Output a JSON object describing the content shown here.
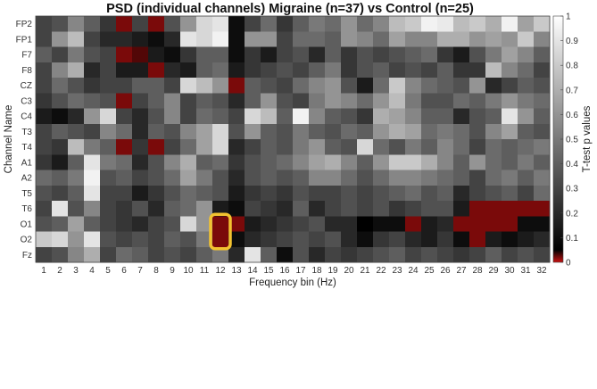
{
  "chart_data": {
    "type": "heatmap",
    "title": "PSD (individual channels) Migraine (n=37) vs Control (n=25)",
    "xlabel": "Frequency bin (Hz)",
    "ylabel": "Channel Name",
    "colorbar_label": "T-test p values",
    "x_ticks": [
      "1",
      "2",
      "3",
      "4",
      "5",
      "6",
      "7",
      "8",
      "9",
      "10",
      "11",
      "12",
      "13",
      "14",
      "15",
      "16",
      "17",
      "18",
      "19",
      "20",
      "21",
      "22",
      "23",
      "24",
      "25",
      "26",
      "27",
      "28",
      "29",
      "30",
      "31",
      "32"
    ],
    "y_ticks": [
      "FP2",
      "FP1",
      "F7",
      "F8",
      "CZ",
      "C3",
      "C4",
      "T3",
      "T4",
      "A1",
      "A2",
      "T5",
      "T6",
      "O1",
      "O2",
      "Fz"
    ],
    "colorbar_range": [
      0,
      1
    ],
    "colorbar_ticks": [
      "0",
      "0.1",
      "0.2",
      "0.3",
      "0.4",
      "0.5",
      "0.6",
      "0.7",
      "0.8",
      "0.9",
      "1"
    ],
    "colormap": {
      "low_red": "#cc1111",
      "low_dark": "#000000",
      "high_white": "#ffffff",
      "red_to_black_at": 0.05
    },
    "highlight": {
      "channels": [
        "O1",
        "O2"
      ],
      "frequency_bin": "12",
      "color": "#f2c230"
    },
    "values": [
      [
        0.3,
        0.35,
        0.55,
        0.4,
        0.25,
        0.02,
        0.3,
        0.02,
        0.35,
        0.6,
        0.85,
        0.9,
        0.1,
        0.3,
        0.45,
        0.25,
        0.4,
        0.5,
        0.45,
        0.6,
        0.45,
        0.55,
        0.75,
        0.8,
        0.95,
        0.92,
        0.75,
        0.8,
        0.7,
        0.95,
        0.65,
        0.8
      ],
      [
        0.3,
        0.6,
        0.75,
        0.3,
        0.2,
        0.2,
        0.15,
        0.1,
        0.2,
        0.9,
        0.85,
        0.95,
        0.1,
        0.6,
        0.6,
        0.3,
        0.45,
        0.45,
        0.4,
        0.6,
        0.55,
        0.45,
        0.65,
        0.55,
        0.55,
        0.7,
        0.7,
        0.6,
        0.65,
        0.6,
        0.8,
        0.55
      ],
      [
        0.4,
        0.3,
        0.5,
        0.35,
        0.3,
        0.02,
        0.03,
        0.15,
        0.1,
        0.25,
        0.4,
        0.4,
        0.1,
        0.25,
        0.15,
        0.3,
        0.35,
        0.2,
        0.4,
        0.25,
        0.35,
        0.3,
        0.35,
        0.4,
        0.45,
        0.25,
        0.15,
        0.35,
        0.5,
        0.65,
        0.55,
        0.4
      ],
      [
        0.3,
        0.55,
        0.7,
        0.2,
        0.3,
        0.15,
        0.15,
        0.02,
        0.2,
        0.15,
        0.4,
        0.45,
        0.15,
        0.25,
        0.3,
        0.35,
        0.3,
        0.4,
        0.5,
        0.25,
        0.35,
        0.4,
        0.3,
        0.35,
        0.3,
        0.4,
        0.25,
        0.25,
        0.75,
        0.55,
        0.45,
        0.3
      ],
      [
        0.3,
        0.45,
        0.35,
        0.25,
        0.3,
        0.3,
        0.4,
        0.4,
        0.3,
        0.85,
        0.75,
        0.6,
        0.02,
        0.4,
        0.35,
        0.3,
        0.45,
        0.55,
        0.6,
        0.35,
        0.15,
        0.45,
        0.8,
        0.55,
        0.45,
        0.4,
        0.35,
        0.6,
        0.2,
        0.3,
        0.4,
        0.35
      ],
      [
        0.25,
        0.35,
        0.45,
        0.4,
        0.35,
        0.02,
        0.3,
        0.4,
        0.55,
        0.3,
        0.4,
        0.35,
        0.2,
        0.4,
        0.6,
        0.35,
        0.3,
        0.5,
        0.6,
        0.55,
        0.45,
        0.6,
        0.75,
        0.5,
        0.35,
        0.35,
        0.45,
        0.4,
        0.5,
        0.6,
        0.5,
        0.45
      ],
      [
        0.15,
        0.1,
        0.2,
        0.6,
        0.85,
        0.3,
        0.2,
        0.35,
        0.55,
        0.3,
        0.45,
        0.4,
        0.3,
        0.85,
        0.75,
        0.4,
        0.95,
        0.55,
        0.4,
        0.35,
        0.25,
        0.7,
        0.65,
        0.55,
        0.4,
        0.4,
        0.2,
        0.35,
        0.4,
        0.9,
        0.6,
        0.4
      ],
      [
        0.3,
        0.4,
        0.35,
        0.3,
        0.55,
        0.45,
        0.2,
        0.4,
        0.35,
        0.55,
        0.65,
        0.85,
        0.35,
        0.6,
        0.4,
        0.35,
        0.5,
        0.4,
        0.35,
        0.45,
        0.4,
        0.6,
        0.7,
        0.65,
        0.45,
        0.5,
        0.45,
        0.35,
        0.55,
        0.65,
        0.4,
        0.35
      ],
      [
        0.3,
        0.25,
        0.75,
        0.5,
        0.4,
        0.02,
        0.25,
        0.02,
        0.3,
        0.45,
        0.65,
        0.85,
        0.2,
        0.3,
        0.4,
        0.35,
        0.5,
        0.6,
        0.4,
        0.35,
        0.85,
        0.45,
        0.35,
        0.5,
        0.4,
        0.55,
        0.45,
        0.3,
        0.45,
        0.4,
        0.45,
        0.5
      ],
      [
        0.25,
        0.15,
        0.4,
        0.9,
        0.5,
        0.45,
        0.2,
        0.35,
        0.55,
        0.7,
        0.4,
        0.45,
        0.25,
        0.35,
        0.4,
        0.45,
        0.55,
        0.65,
        0.7,
        0.55,
        0.4,
        0.6,
        0.8,
        0.8,
        0.7,
        0.55,
        0.4,
        0.6,
        0.45,
        0.4,
        0.5,
        0.4
      ],
      [
        0.45,
        0.4,
        0.5,
        0.95,
        0.35,
        0.4,
        0.3,
        0.35,
        0.45,
        0.65,
        0.5,
        0.35,
        0.2,
        0.35,
        0.4,
        0.35,
        0.4,
        0.55,
        0.55,
        0.45,
        0.35,
        0.45,
        0.55,
        0.55,
        0.5,
        0.45,
        0.4,
        0.3,
        0.45,
        0.5,
        0.4,
        0.5
      ],
      [
        0.35,
        0.3,
        0.4,
        0.9,
        0.3,
        0.3,
        0.15,
        0.25,
        0.35,
        0.45,
        0.4,
        0.35,
        0.15,
        0.25,
        0.3,
        0.25,
        0.35,
        0.3,
        0.3,
        0.35,
        0.3,
        0.35,
        0.4,
        0.45,
        0.35,
        0.4,
        0.2,
        0.3,
        0.35,
        0.4,
        0.3,
        0.45
      ],
      [
        0.3,
        0.9,
        0.35,
        0.55,
        0.3,
        0.25,
        0.35,
        0.2,
        0.4,
        0.45,
        0.6,
        0.15,
        0.1,
        0.3,
        0.25,
        0.2,
        0.4,
        0.2,
        0.3,
        0.35,
        0.3,
        0.35,
        0.25,
        0.3,
        0.35,
        0.35,
        0.15,
        0.02,
        0.02,
        0.02,
        0.02,
        0.02
      ],
      [
        0.35,
        0.4,
        0.65,
        0.4,
        0.3,
        0.25,
        0.2,
        0.3,
        0.35,
        0.85,
        0.6,
        0.02,
        0.02,
        0.15,
        0.2,
        0.25,
        0.3,
        0.35,
        0.2,
        0.2,
        0.05,
        0.1,
        0.1,
        0.02,
        0.15,
        0.2,
        0.02,
        0.02,
        0.02,
        0.02,
        0.1,
        0.1
      ],
      [
        0.8,
        0.85,
        0.6,
        0.9,
        0.35,
        0.3,
        0.35,
        0.3,
        0.4,
        0.35,
        0.5,
        0.02,
        0.1,
        0.2,
        0.25,
        0.3,
        0.35,
        0.3,
        0.35,
        0.2,
        0.1,
        0.25,
        0.3,
        0.2,
        0.15,
        0.25,
        0.1,
        0.02,
        0.15,
        0.1,
        0.15,
        0.2
      ],
      [
        0.3,
        0.35,
        0.55,
        0.7,
        0.3,
        0.45,
        0.4,
        0.3,
        0.35,
        0.3,
        0.4,
        0.5,
        0.2,
        0.9,
        0.4,
        0.1,
        0.35,
        0.2,
        0.3,
        0.25,
        0.3,
        0.35,
        0.4,
        0.3,
        0.35,
        0.3,
        0.25,
        0.3,
        0.4,
        0.3,
        0.35,
        0.3
      ]
    ]
  }
}
